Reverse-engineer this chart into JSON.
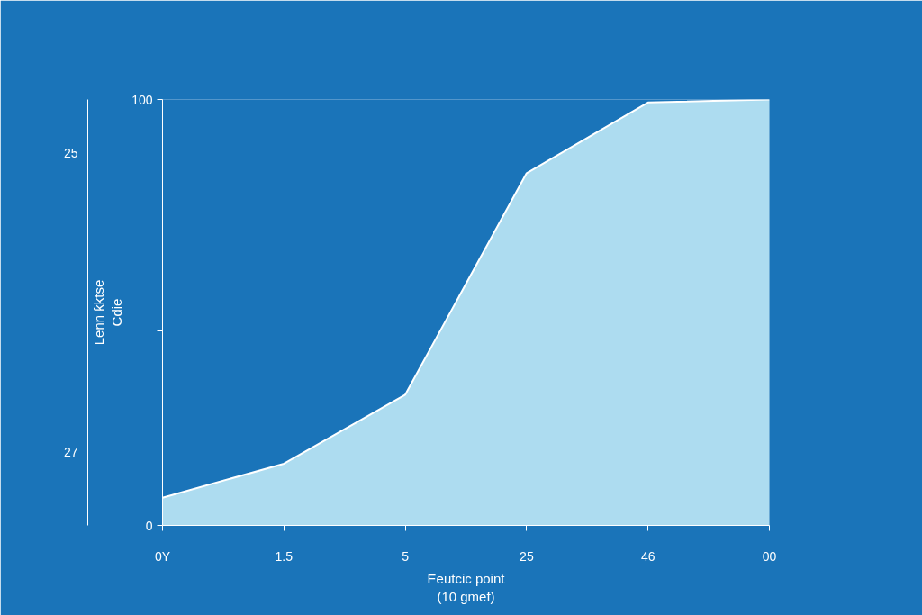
{
  "chart_data": {
    "type": "area",
    "xlabel": "Eeutcic point\n(10 gmef)",
    "ylabel": "Lenn ƙktse\nCdie",
    "categories": [
      "0Y",
      "1.5",
      "5",
      "25",
      "46",
      "00"
    ],
    "series": [
      {
        "color": "#b5e2f2",
        "values": [
          6.5,
          14.5,
          30.7,
          82.7,
          99.3,
          100
        ]
      }
    ],
    "ylim": [
      0,
      100
    ],
    "yticks": [
      0,
      {
        "value": 45.7,
        "label": null
      },
      100
    ],
    "annotations": [
      "25",
      "27"
    ],
    "grid": false
  }
}
